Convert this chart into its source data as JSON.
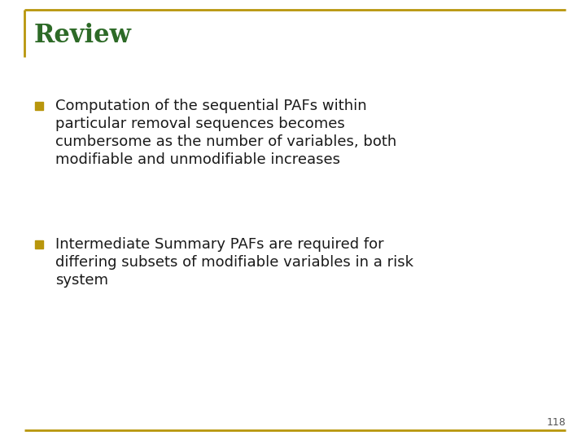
{
  "title": "Review",
  "title_color": "#2D6A27",
  "title_fontsize": 22,
  "title_bold": true,
  "background_color": "#FFFFFF",
  "border_color": "#B8960C",
  "border_linewidth": 2.0,
  "bullet_color": "#B8960C",
  "text_color": "#1A1A1A",
  "bullet_fontsize": 13,
  "bullet1_lines": [
    "Computation of the sequential PAFs within",
    "particular removal sequences becomes",
    "cumbersome as the number of variables, both",
    "modifiable and unmodifiable increases"
  ],
  "bullet2_lines": [
    "Intermediate Summary PAFs are required for",
    "differing subsets of modifiable variables in a risk",
    "system"
  ],
  "page_number": "118",
  "page_number_fontsize": 9,
  "page_number_color": "#555555"
}
